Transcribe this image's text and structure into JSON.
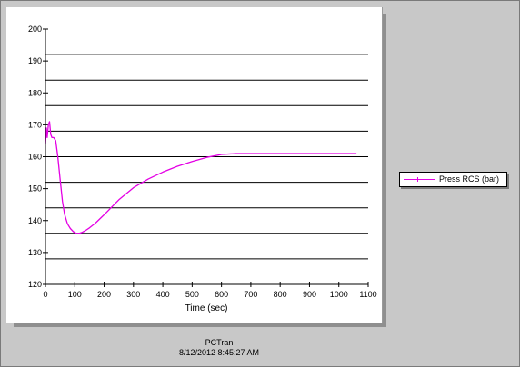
{
  "chart_data": {
    "type": "line",
    "title": "",
    "xlabel": "Time (sec)",
    "ylabel": "",
    "xlim": [
      0,
      1100
    ],
    "ylim": [
      120,
      200
    ],
    "x_ticks": [
      0,
      100,
      200,
      300,
      400,
      500,
      600,
      700,
      800,
      900,
      1000,
      1100
    ],
    "y_ticks": [
      120,
      130,
      140,
      150,
      160,
      170,
      180,
      190,
      200
    ],
    "grid_lines_y": [
      128,
      136,
      144,
      152,
      160,
      168,
      176,
      184,
      192
    ],
    "grid": true,
    "legend_position": "right",
    "series": [
      {
        "name": "Press RCS (bar)",
        "color": "#e400e4",
        "x": [
          0,
          3,
          6,
          10,
          14,
          18,
          22,
          28,
          35,
          42,
          50,
          58,
          65,
          75,
          85,
          95,
          105,
          115,
          125,
          135,
          150,
          170,
          200,
          250,
          300,
          350,
          400,
          450,
          500,
          550,
          600,
          650,
          700,
          800,
          900,
          1000,
          1060
        ],
        "y": [
          164,
          169,
          166,
          170,
          171,
          167,
          166,
          166,
          165,
          160,
          153,
          146,
          142,
          139,
          137.5,
          136.5,
          136,
          136,
          136.3,
          136.8,
          137.7,
          139.2,
          141.8,
          146.5,
          150.3,
          153,
          155.2,
          157,
          158.5,
          159.8,
          160.7,
          161,
          161,
          161,
          161,
          161,
          161
        ]
      }
    ]
  },
  "footer": {
    "app_name": "PCTran",
    "timestamp": "8/12/2012 8:45:27 AM"
  }
}
